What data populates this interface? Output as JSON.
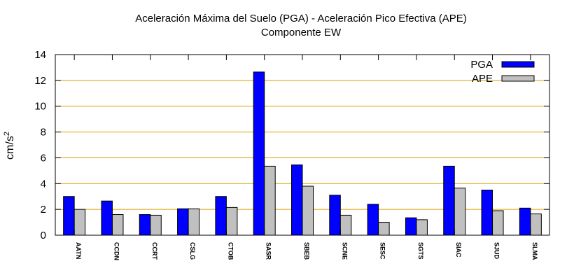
{
  "chart_data": {
    "type": "bar",
    "title": "Aceleración Máxima del Suelo (PGA) -  Aceleración Pico Efectiva (APE)",
    "subtitle": "Componente EW",
    "xlabel": "",
    "ylabel": "cm/s",
    "ylabel_superscript": "2",
    "ylim": [
      0,
      14
    ],
    "yticks": [
      "0",
      "2",
      "4",
      "6",
      "8",
      "10",
      "12",
      "14"
    ],
    "grid": true,
    "legend_position": "top-right",
    "categories": [
      "AATN",
      "CCDN",
      "CCRT",
      "CSLG",
      "CTOB",
      "SASR",
      "SBEB",
      "SCNE",
      "SESC",
      "SGTS",
      "SIAC",
      "SJUD",
      "SLMA"
    ],
    "series": [
      {
        "name": "PGA",
        "color": "#0000ff",
        "values": [
          3.0,
          2.65,
          1.6,
          2.05,
          3.0,
          12.65,
          5.45,
          3.1,
          2.4,
          1.35,
          5.35,
          3.5,
          2.1
        ]
      },
      {
        "name": "APE",
        "color": "#c0c0c0",
        "values": [
          2.0,
          1.6,
          1.55,
          2.05,
          2.15,
          5.35,
          3.8,
          1.55,
          1.0,
          1.2,
          3.65,
          1.9,
          1.65
        ]
      }
    ],
    "grid_color": "#d9a000"
  }
}
